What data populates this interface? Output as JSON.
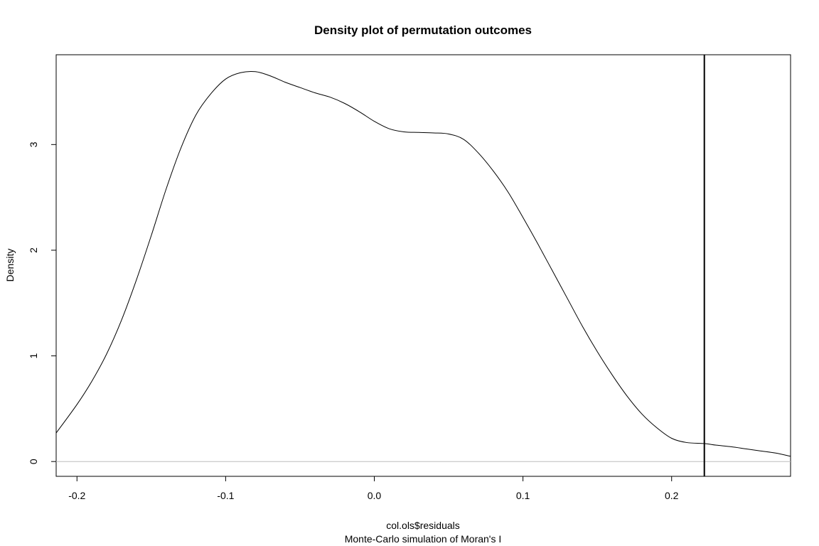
{
  "chart_data": {
    "type": "line",
    "title": "Density plot of permutation outcomes",
    "xlabel": "col.ols$residuals",
    "subtitle": "Monte-Carlo simulation of Moran's I",
    "ylabel": "Density",
    "xlim": [
      -0.214,
      0.28
    ],
    "ylim": [
      -0.14,
      3.85
    ],
    "x_ticks": [
      -0.2,
      -0.1,
      0.0,
      0.1,
      0.2
    ],
    "x_tick_labels": [
      "-0.2",
      "-0.1",
      "0.0",
      "0.1",
      "0.2"
    ],
    "y_ticks": [
      0,
      1,
      2,
      3
    ],
    "y_tick_labels": [
      "0",
      "1",
      "2",
      "3"
    ],
    "grid": false,
    "legend": "none",
    "series": [
      {
        "x": [
          -0.214,
          -0.2,
          -0.19,
          -0.18,
          -0.17,
          -0.16,
          -0.15,
          -0.14,
          -0.13,
          -0.12,
          -0.11,
          -0.1,
          -0.09,
          -0.08,
          -0.07,
          -0.06,
          -0.05,
          -0.04,
          -0.03,
          -0.02,
          -0.01,
          0.0,
          0.01,
          0.02,
          0.03,
          0.04,
          0.05,
          0.06,
          0.07,
          0.08,
          0.09,
          0.1,
          0.11,
          0.12,
          0.13,
          0.14,
          0.15,
          0.16,
          0.17,
          0.18,
          0.19,
          0.2,
          0.21,
          0.222,
          0.23,
          0.24,
          0.25,
          0.26,
          0.27,
          0.28
        ],
        "y": [
          0.27,
          0.54,
          0.76,
          1.02,
          1.34,
          1.72,
          2.14,
          2.58,
          2.97,
          3.28,
          3.48,
          3.62,
          3.68,
          3.69,
          3.65,
          3.59,
          3.54,
          3.49,
          3.45,
          3.39,
          3.31,
          3.22,
          3.15,
          3.12,
          3.115,
          3.11,
          3.1,
          3.05,
          2.92,
          2.75,
          2.55,
          2.31,
          2.06,
          1.8,
          1.54,
          1.28,
          1.04,
          0.82,
          0.62,
          0.45,
          0.32,
          0.22,
          0.18,
          0.17,
          0.155,
          0.14,
          0.12,
          0.1,
          0.08,
          0.05
        ]
      }
    ],
    "vline_x": 0.222,
    "hline_y": 0
  },
  "colors": {
    "curve": "#000000",
    "vline": "#000000",
    "baseline": "#bebebe",
    "box": "#000000"
  }
}
